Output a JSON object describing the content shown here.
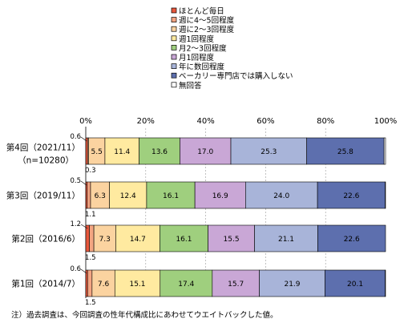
{
  "chart_data": {
    "type": "bar",
    "orientation": "horizontal",
    "stacked": true,
    "legend": {
      "placement": "top",
      "items": [
        {
          "label": "ほとんど毎日",
          "color": "#e8573c"
        },
        {
          "label": "週に4～5回程度",
          "color": "#f4a582"
        },
        {
          "label": "週に2～3回程度",
          "color": "#fbd3a0"
        },
        {
          "label": "週1回程度",
          "color": "#ffeaa0"
        },
        {
          "label": "月2～3回程度",
          "color": "#9fcf7e"
        },
        {
          "label": "月1回程度",
          "color": "#c9a7d6"
        },
        {
          "label": "年に数回程度",
          "color": "#a8b4d9"
        },
        {
          "label": "ベーカリー専門店では購入しない",
          "color": "#5d6fae"
        },
        {
          "label": "無回答",
          "color": "#ffffff"
        }
      ]
    },
    "categories": [
      {
        "label": "第4回（2021/11）",
        "sublabel": "（n=10280）"
      },
      {
        "label": "第3回（2019/11）",
        "sublabel": ""
      },
      {
        "label": "第2回（2016/6）",
        "sublabel": ""
      },
      {
        "label": "第1回（2014/7）",
        "sublabel": ""
      }
    ],
    "values": [
      [
        0.6,
        0.3,
        5.5,
        11.4,
        13.6,
        17.0,
        25.3,
        25.8,
        0.5
      ],
      [
        0.5,
        1.1,
        6.3,
        12.4,
        16.1,
        16.9,
        24.0,
        22.6,
        0.1
      ],
      [
        1.2,
        1.5,
        7.3,
        14.7,
        16.1,
        15.5,
        21.1,
        22.6,
        0.0
      ],
      [
        0.6,
        1.5,
        7.6,
        15.1,
        17.4,
        15.7,
        21.9,
        20.1,
        0.1
      ]
    ],
    "labels": [
      [
        "0.6",
        "0.3",
        "5.5",
        "11.4",
        "13.6",
        "17.0",
        "25.3",
        "25.8"
      ],
      [
        "0.5",
        "1.1",
        "6.3",
        "12.4",
        "16.1",
        "16.9",
        "24.0",
        "22.6"
      ],
      [
        "1.2",
        "1.5",
        "7.3",
        "14.7",
        "16.1",
        "15.5",
        "21.1",
        "22.6"
      ],
      [
        "0.6",
        "1.5",
        "7.6",
        "15.1",
        "17.4",
        "15.7",
        "21.9",
        "20.1"
      ]
    ],
    "xticks": [
      "0%",
      "20%",
      "40%",
      "60%",
      "80%",
      "100%"
    ],
    "xlim": [
      0,
      100
    ],
    "grid": true
  },
  "footnote": "注）過去調査は、今回調査の性年代構成比にあわせてウエイトバックした値。"
}
